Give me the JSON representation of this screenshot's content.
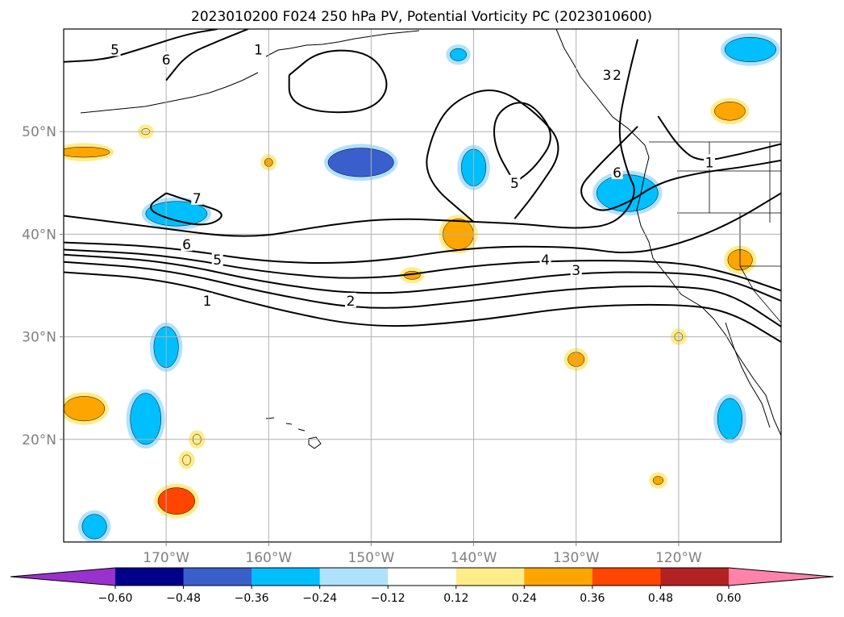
{
  "chart_data": {
    "type": "map-contour",
    "title": "2023010200 F024 250 hPa PV, Potential Vorticity PC (2023010600)",
    "x_ticks": [
      "170°W",
      "160°W",
      "150°W",
      "140°W",
      "130°W",
      "120°W"
    ],
    "x_tick_lon": [
      -170,
      -160,
      -150,
      -140,
      -130,
      -120
    ],
    "y_ticks": [
      "50°N",
      "40°N",
      "30°N",
      "20°N"
    ],
    "y_tick_lat": [
      50,
      40,
      30,
      20
    ],
    "extent": {
      "lon": [
        -180,
        -110
      ],
      "lat": [
        10,
        60
      ]
    },
    "grid": true,
    "colorbar": {
      "orientation": "horizontal",
      "extend": "both",
      "ticks": [
        "−0.60",
        "−0.48",
        "−0.36",
        "−0.24",
        "−0.12",
        "0.12",
        "0.24",
        "0.36",
        "0.48",
        "0.60"
      ],
      "bins": [
        {
          "range": "< -0.60",
          "color": "#9932cc"
        },
        {
          "range": "-0.60 to -0.48",
          "color": "#00008b"
        },
        {
          "range": "-0.48 to -0.36",
          "color": "#3a5fcd"
        },
        {
          "range": "-0.36 to -0.24",
          "color": "#00bfff"
        },
        {
          "range": "-0.24 to -0.12",
          "color": "#b0e2ff"
        },
        {
          "range": "-0.12 to 0.12",
          "color": "#ffffff"
        },
        {
          "range": "0.12 to 0.24",
          "color": "#ffec8b"
        },
        {
          "range": "0.24 to 0.36",
          "color": "#ffa500"
        },
        {
          "range": "0.36 to 0.48",
          "color": "#ff4500"
        },
        {
          "range": "0.48 to 0.60",
          "color": "#b22222"
        },
        {
          "range": "> 0.60",
          "color": "#ff82ab"
        }
      ]
    },
    "contour_levels": [
      1,
      2,
      3,
      4,
      5,
      6,
      7
    ],
    "contour_labels": [
      {
        "text": "1",
        "lon": -166,
        "lat": 33.5
      },
      {
        "text": "2",
        "lon": -152,
        "lat": 33.5
      },
      {
        "text": "3",
        "lon": -130,
        "lat": 36.5
      },
      {
        "text": "4",
        "lon": -133,
        "lat": 37.5
      },
      {
        "text": "5",
        "lon": -165,
        "lat": 37.5
      },
      {
        "text": "6",
        "lon": -168,
        "lat": 39.0
      },
      {
        "text": "7",
        "lon": -167,
        "lat": 43.5
      },
      {
        "text": "5",
        "lon": -175,
        "lat": 58.0
      },
      {
        "text": "6",
        "lon": -170,
        "lat": 57.0
      },
      {
        "text": "1",
        "lon": -161,
        "lat": 58.0
      },
      {
        "text": "5",
        "lon": -136,
        "lat": 45.0
      },
      {
        "text": "6",
        "lon": -126,
        "lat": 46.0
      },
      {
        "text": "1",
        "lon": -117,
        "lat": 47.0
      },
      {
        "text": "3",
        "lon": -127,
        "lat": 55.5
      },
      {
        "text": "2",
        "lon": -126,
        "lat": 55.5
      }
    ],
    "contours": [
      {
        "level": 1,
        "points": [
          [
            -180,
            36.3
          ],
          [
            -170,
            35.6
          ],
          [
            -160,
            32.8
          ],
          [
            -150,
            30.8
          ],
          [
            -140,
            31.5
          ],
          [
            -130,
            33.0
          ],
          [
            -120,
            33.2
          ],
          [
            -115,
            32.5
          ],
          [
            -110,
            29.5
          ]
        ]
      },
      {
        "level": 2,
        "points": [
          [
            -180,
            37.3
          ],
          [
            -170,
            36.6
          ],
          [
            -160,
            34.2
          ],
          [
            -150,
            32.5
          ],
          [
            -140,
            33.5
          ],
          [
            -130,
            34.8
          ],
          [
            -120,
            35.0
          ],
          [
            -115,
            34.3
          ],
          [
            -110,
            31.0
          ]
        ]
      },
      {
        "level": 3,
        "points": [
          [
            -180,
            38.0
          ],
          [
            -170,
            37.4
          ],
          [
            -160,
            35.2
          ],
          [
            -150,
            34.0
          ],
          [
            -140,
            35.0
          ],
          [
            -130,
            36.3
          ],
          [
            -120,
            36.3
          ],
          [
            -115,
            35.6
          ],
          [
            -110,
            33.5
          ]
        ]
      },
      {
        "level": 4,
        "points": [
          [
            -180,
            38.5
          ],
          [
            -170,
            38.0
          ],
          [
            -160,
            36.2
          ],
          [
            -150,
            35.5
          ],
          [
            -140,
            37.0
          ],
          [
            -130,
            37.5
          ],
          [
            -120,
            37.3
          ],
          [
            -115,
            36.2
          ],
          [
            -110,
            34.5
          ]
        ]
      },
      {
        "level": 5,
        "points": [
          [
            -180,
            39.2
          ],
          [
            -170,
            38.8
          ],
          [
            -160,
            37.2
          ],
          [
            -150,
            37.2
          ],
          [
            -140,
            38.8
          ],
          [
            -130,
            38.8
          ],
          [
            -125,
            38.0
          ],
          [
            -120,
            39.0
          ],
          [
            -115,
            41.0
          ],
          [
            -110,
            44.0
          ]
        ]
      },
      {
        "level": 6,
        "points": [
          [
            -180,
            41.8
          ],
          [
            -172,
            40.8
          ],
          [
            -162,
            39.5
          ],
          [
            -155,
            40.8
          ],
          [
            -148,
            41.6
          ],
          [
            -140,
            41.2
          ],
          [
            -135,
            41.0
          ],
          [
            -130,
            40.5
          ],
          [
            -126,
            41.0
          ],
          [
            -124,
            44.0
          ],
          [
            -125,
            46.0
          ],
          [
            -126,
            50.0
          ],
          [
            -125,
            55.0
          ],
          [
            -124,
            59.0
          ]
        ]
      },
      {
        "level": 7,
        "points": [
          [
            -170,
            44.0
          ],
          [
            -167,
            43.0
          ],
          [
            -164,
            42.0
          ],
          [
            -166,
            40.7
          ],
          [
            -170,
            41.5
          ],
          [
            -172,
            42.6
          ],
          [
            -170,
            44.0
          ]
        ]
      },
      {
        "level": 5,
        "points": [
          [
            -180,
            56.8
          ],
          [
            -176,
            57.0
          ],
          [
            -172,
            58.2
          ],
          [
            -168,
            59.5
          ],
          [
            -165,
            60.0
          ]
        ]
      },
      {
        "level": 6,
        "points": [
          [
            -170,
            55.0
          ],
          [
            -168,
            57.5
          ],
          [
            -165,
            58.8
          ],
          [
            -162,
            60.0
          ]
        ]
      },
      {
        "level": 1,
        "points": [
          [
            -158,
            55.5
          ],
          [
            -155,
            58.0
          ],
          [
            -150,
            57.8
          ],
          [
            -148,
            54.5
          ],
          [
            -150,
            52.0
          ],
          [
            -155,
            51.8
          ],
          [
            -158,
            53.0
          ],
          [
            -158,
            55.5
          ]
        ]
      },
      {
        "level": 5,
        "points": [
          [
            -136,
            45.0
          ],
          [
            -138,
            48.5
          ],
          [
            -138,
            51.5
          ],
          [
            -136,
            53.0
          ],
          [
            -134,
            52.5
          ],
          [
            -132,
            49.5
          ],
          [
            -134,
            46.5
          ],
          [
            -136,
            45.0
          ]
        ]
      },
      {
        "level": 5,
        "points": [
          [
            -140,
            41.2
          ],
          [
            -145,
            45.5
          ],
          [
            -144,
            50.0
          ],
          [
            -142,
            53.0
          ],
          [
            -138,
            54.5
          ],
          [
            -134,
            52.0
          ],
          [
            -131,
            48.5
          ],
          [
            -134,
            44.0
          ],
          [
            -136,
            41.5
          ]
        ]
      },
      {
        "level": 6,
        "points": [
          [
            -124,
            50.5
          ],
          [
            -126,
            48.5
          ],
          [
            -128,
            46.5
          ],
          [
            -130,
            44.2
          ],
          [
            -128,
            42.0
          ],
          [
            -125,
            43.0
          ],
          [
            -122,
            45.0
          ],
          [
            -118,
            46.0
          ],
          [
            -114,
            46.5
          ],
          [
            -110,
            47.2
          ]
        ]
      },
      {
        "level": 1,
        "points": [
          [
            -122,
            51.5
          ],
          [
            -120,
            48.5
          ],
          [
            -118,
            47.0
          ],
          [
            -114,
            47.8
          ],
          [
            -110,
            48.8
          ]
        ]
      }
    ],
    "shading": [
      {
        "lon": -151,
        "lat": 47,
        "rx": 3.2,
        "ry": 1.4,
        "bin": 2
      },
      {
        "lon": -169,
        "lat": 42,
        "rx": 3.0,
        "ry": 1.2,
        "bin": 3
      },
      {
        "lon": -140,
        "lat": 46.5,
        "rx": 1.2,
        "ry": 1.8,
        "bin": 3
      },
      {
        "lon": -125,
        "lat": 44,
        "rx": 3.0,
        "ry": 1.8,
        "bin": 3
      },
      {
        "lon": -113,
        "lat": 58,
        "rx": 2.5,
        "ry": 1.2,
        "bin": 3
      },
      {
        "lon": -141.5,
        "lat": 57.5,
        "rx": 0.8,
        "ry": 0.6,
        "bin": 3
      },
      {
        "lon": -170,
        "lat": 29,
        "rx": 1.2,
        "ry": 2.0,
        "bin": 3
      },
      {
        "lon": -172,
        "lat": 22,
        "rx": 1.5,
        "ry": 2.5,
        "bin": 3
      },
      {
        "lon": -177,
        "lat": 11.5,
        "rx": 1.2,
        "ry": 1.2,
        "bin": 3
      },
      {
        "lon": -115,
        "lat": 22,
        "rx": 1.2,
        "ry": 2.0,
        "bin": 3
      },
      {
        "lon": -141.5,
        "lat": 40,
        "rx": 1.5,
        "ry": 1.5,
        "bin": 7
      },
      {
        "lon": -178,
        "lat": 23,
        "rx": 2.0,
        "ry": 1.2,
        "bin": 7
      },
      {
        "lon": -169,
        "lat": 14,
        "rx": 1.8,
        "ry": 1.3,
        "bin": 8
      },
      {
        "lon": -115,
        "lat": 52,
        "rx": 1.5,
        "ry": 0.9,
        "bin": 7
      },
      {
        "lon": -130,
        "lat": 27.8,
        "rx": 0.8,
        "ry": 0.7,
        "bin": 7
      },
      {
        "lon": -178,
        "lat": 48,
        "rx": 2.5,
        "ry": 0.5,
        "bin": 7
      },
      {
        "lon": -114,
        "lat": 37.5,
        "rx": 1.2,
        "ry": 1.0,
        "bin": 7
      },
      {
        "lon": -146,
        "lat": 36,
        "rx": 0.8,
        "ry": 0.4,
        "bin": 7
      },
      {
        "lon": -120,
        "lat": 30,
        "rx": 0.4,
        "ry": 0.4,
        "bin": 6
      },
      {
        "lon": -122,
        "lat": 16,
        "rx": 0.5,
        "ry": 0.4,
        "bin": 7
      },
      {
        "lon": -160,
        "lat": 47,
        "rx": 0.4,
        "ry": 0.4,
        "bin": 7
      },
      {
        "lon": -167,
        "lat": 20,
        "rx": 0.4,
        "ry": 0.5,
        "bin": 6
      },
      {
        "lon": -168,
        "lat": 18,
        "rx": 0.4,
        "ry": 0.5,
        "bin": 6
      },
      {
        "lon": -172,
        "lat": 50,
        "rx": 0.4,
        "ry": 0.3,
        "bin": 6
      }
    ]
  }
}
